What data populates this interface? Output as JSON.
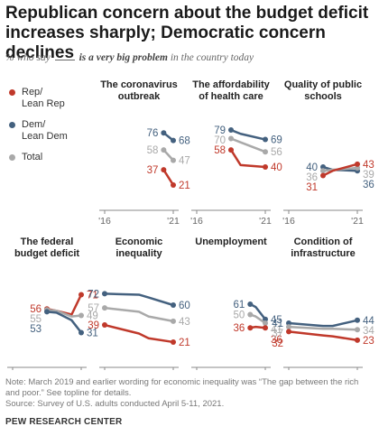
{
  "title": "Republican concern about the budget deficit increases sharply; Democratic concern declines",
  "subtitle": {
    "prefix": "% who say",
    "emphasis": "is a very big problem",
    "suffix": "in the country today"
  },
  "colors": {
    "rep": "#c0392b",
    "dem": "#44617f",
    "total": "#a9a9a9",
    "axis": "#888888"
  },
  "legend": [
    {
      "key": "rep",
      "label_lines": [
        "Rep/",
        "Lean Rep"
      ]
    },
    {
      "key": "dem",
      "label_lines": [
        "Dem/",
        "Lean Dem"
      ]
    },
    {
      "key": "total",
      "label_lines": [
        "Total"
      ]
    }
  ],
  "chart_data": {
    "type": "line",
    "x": [
      2018.5,
      2019.2,
      2021.0
    ],
    "xticks": [
      "'16",
      "'21"
    ],
    "xlim": [
      2016,
      2021
    ],
    "ylim": [
      0,
      100
    ],
    "panels": [
      {
        "title": "The coronavirus outbreak",
        "series": [
          {
            "key": "dem",
            "x": [
              2020.3,
              2021.0
            ],
            "values": [
              76,
              68
            ]
          },
          {
            "key": "total",
            "x": [
              2020.3,
              2021.0
            ],
            "values": [
              58,
              47
            ]
          },
          {
            "key": "rep",
            "x": [
              2020.3,
              2021.0
            ],
            "values": [
              37,
              21
            ]
          }
        ]
      },
      {
        "title": "The affordability of health care",
        "series": [
          {
            "key": "dem",
            "x": [
              2018.5,
              2019.2,
              2021.0
            ],
            "values": [
              79,
              75,
              69
            ]
          },
          {
            "key": "total",
            "x": [
              2018.5,
              2019.2,
              2021.0
            ],
            "values": [
              70,
              66,
              56
            ]
          },
          {
            "key": "rep",
            "x": [
              2018.5,
              2019.2,
              2021.0
            ],
            "values": [
              58,
              42,
              40
            ]
          }
        ]
      },
      {
        "title": "Quality of public schools",
        "series": [
          {
            "key": "dem",
            "x": [
              2018.5,
              2019.2,
              2021.0
            ],
            "values": [
              40,
              37,
              36
            ]
          },
          {
            "key": "total",
            "x": [
              2018.5,
              2019.2,
              2021.0
            ],
            "values": [
              36,
              37,
              39
            ]
          },
          {
            "key": "rep",
            "x": [
              2018.5,
              2019.2,
              2021.0
            ],
            "values": [
              31,
              36,
              43
            ]
          }
        ]
      },
      {
        "title": "The federal budget deficit",
        "series": [
          {
            "key": "rep",
            "x": [
              2018.5,
              2019.2,
              2020.3,
              2021.0
            ],
            "values": [
              56,
              54,
              50,
              71
            ]
          },
          {
            "key": "total",
            "x": [
              2018.5,
              2019.2,
              2020.3,
              2021.0
            ],
            "values": [
              55,
              54,
              48,
              49
            ]
          },
          {
            "key": "dem",
            "x": [
              2018.5,
              2019.2,
              2020.3,
              2021.0
            ],
            "values": [
              53,
              52,
              44,
              31
            ]
          }
        ]
      },
      {
        "title": "Economic inequality",
        "series": [
          {
            "key": "dem",
            "x": [
              2016.0,
              2018.5,
              2019.2,
              2021.0
            ],
            "values": [
              72,
              71,
              68,
              60
            ]
          },
          {
            "key": "total",
            "x": [
              2016.0,
              2018.5,
              2019.2,
              2021.0
            ],
            "values": [
              57,
              53,
              48,
              43
            ]
          },
          {
            "key": "rep",
            "x": [
              2016.0,
              2018.5,
              2019.2,
              2021.0
            ],
            "values": [
              39,
              30,
              25,
              21
            ]
          }
        ]
      },
      {
        "title": "Unemployment",
        "series": [
          {
            "key": "dem",
            "x": [
              2019.9,
              2020.3,
              2021.0
            ],
            "values": [
              61,
              58,
              45
            ]
          },
          {
            "key": "total",
            "x": [
              2019.9,
              2020.3,
              2021.0
            ],
            "values": [
              50,
              48,
              41
            ]
          },
          {
            "key": "rep",
            "x": [
              2019.9,
              2020.3,
              2021.0
            ],
            "values": [
              36,
              37,
              36
            ]
          }
        ]
      },
      {
        "title": "Condition of infrastructure",
        "series": [
          {
            "key": "dem",
            "x": [
              2016.0,
              2018.5,
              2019.2,
              2021.0
            ],
            "values": [
              41,
              38,
              38,
              44
            ]
          },
          {
            "key": "total",
            "x": [
              2016.0,
              2018.5,
              2019.2,
              2021.0
            ],
            "values": [
              37,
              35,
              35,
              34
            ]
          },
          {
            "key": "rep",
            "x": [
              2016.0,
              2018.5,
              2019.2,
              2021.0
            ],
            "values": [
              32,
              28,
              27,
              23
            ]
          }
        ]
      }
    ]
  },
  "note": "Note: March 2019 and earlier wording for economic inequality was “The gap between the rich and poor.” See topline for details.",
  "source": "Source: Survey of U.S. adults conducted April 5-11, 2021.",
  "brand": "PEW RESEARCH CENTER"
}
